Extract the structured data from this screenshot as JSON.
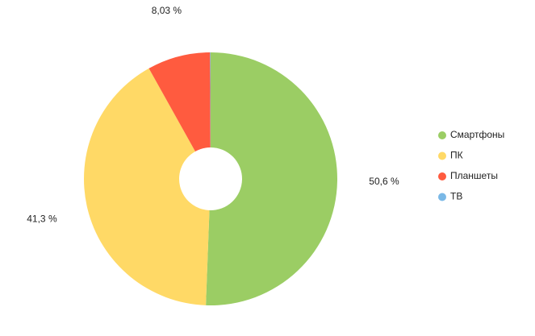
{
  "chart_data": {
    "type": "donut",
    "categories": [
      "Смартфоны",
      "ПК",
      "Планшеты",
      "ТВ"
    ],
    "values": [
      50.6,
      41.3,
      8.03,
      0.07
    ],
    "value_labels": [
      "50,6 %",
      "41,3 %",
      "8,03 %",
      null
    ],
    "colors": [
      "#9bcd64",
      "#ffd966",
      "#ff5b3f",
      "#7ab8e6"
    ],
    "legend": "right"
  }
}
